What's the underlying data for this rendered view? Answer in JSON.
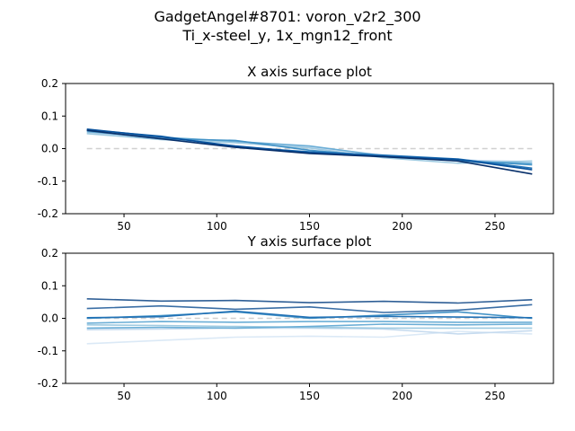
{
  "figure": {
    "suptitle_line1": "GadgetAngel#8701: voron_v2r2_300",
    "suptitle_line2": "Ti_x-steel_y, 1x_mgn12_front"
  },
  "chart_data": [
    {
      "type": "line",
      "title": "X axis surface plot",
      "xlabel": "",
      "ylabel": "",
      "xlim": [
        18.5,
        281.5
      ],
      "ylim": [
        -0.2,
        0.2
      ],
      "xticks": [
        50,
        100,
        150,
        200,
        250
      ],
      "yticks": [
        -0.2,
        -0.1,
        0.0,
        0.1,
        0.2
      ],
      "grid": false,
      "x": [
        30,
        70,
        110,
        150,
        190,
        230,
        270
      ],
      "reference": {
        "values": [
          0,
          0,
          0,
          0,
          0,
          0,
          0
        ],
        "style": "dashed",
        "color": "#d0d0d0"
      },
      "series": [
        {
          "color": "#c6dbef",
          "values": [
            0.048,
            0.032,
            0.02,
            0.005,
            -0.02,
            -0.035,
            -0.04
          ]
        },
        {
          "color": "#9ecae1",
          "values": [
            0.046,
            0.028,
            0.018,
            0.002,
            -0.028,
            -0.045,
            -0.038
          ]
        },
        {
          "color": "#6baed6",
          "values": [
            0.052,
            0.035,
            0.022,
            0.008,
            -0.022,
            -0.038,
            -0.045
          ]
        },
        {
          "color": "#4292c6",
          "values": [
            0.055,
            0.03,
            0.025,
            -0.005,
            -0.025,
            -0.036,
            -0.05
          ]
        },
        {
          "color": "#2171b5",
          "values": [
            0.058,
            0.038,
            0.005,
            -0.01,
            -0.02,
            -0.032,
            -0.06
          ]
        },
        {
          "color": "#08519c",
          "values": [
            0.06,
            0.036,
            0.008,
            -0.012,
            -0.024,
            -0.033,
            -0.065
          ]
        },
        {
          "color": "#08306b",
          "values": [
            0.056,
            0.03,
            0.004,
            -0.015,
            -0.025,
            -0.038,
            -0.078
          ]
        }
      ]
    },
    {
      "type": "line",
      "title": "Y axis surface plot",
      "xlabel": "",
      "ylabel": "",
      "xlim": [
        18.5,
        281.5
      ],
      "ylim": [
        -0.2,
        0.2
      ],
      "xticks": [
        50,
        100,
        150,
        200,
        250
      ],
      "yticks": [
        -0.2,
        -0.1,
        0.0,
        0.1,
        0.2
      ],
      "grid": false,
      "x": [
        30,
        70,
        110,
        150,
        190,
        230,
        270
      ],
      "reference": {
        "values": [
          0,
          0,
          0,
          0,
          0,
          0,
          0
        ],
        "style": "dashed",
        "color": "#d0d0d0"
      },
      "series": [
        {
          "color": "#dbe9f6",
          "values": [
            -0.078,
            -0.068,
            -0.058,
            -0.055,
            -0.058,
            -0.04,
            -0.048
          ]
        },
        {
          "color": "#c6dbef",
          "values": [
            -0.035,
            -0.033,
            -0.03,
            -0.03,
            -0.033,
            -0.048,
            -0.038
          ]
        },
        {
          "color": "#9ecae1",
          "values": [
            -0.02,
            -0.022,
            -0.025,
            -0.028,
            -0.03,
            -0.03,
            -0.03
          ]
        },
        {
          "color": "#6baed6",
          "values": [
            -0.03,
            -0.028,
            -0.03,
            -0.025,
            -0.018,
            -0.02,
            -0.018
          ]
        },
        {
          "color": "#6baed6",
          "values": [
            -0.015,
            -0.01,
            -0.012,
            -0.01,
            -0.01,
            -0.012,
            -0.012
          ]
        },
        {
          "color": "#4292c6",
          "values": [
            0.0,
            0.008,
            0.02,
            0.0,
            0.01,
            0.02,
            0.0
          ]
        },
        {
          "color": "#2171b5",
          "values": [
            0.002,
            0.005,
            0.022,
            0.003,
            0.006,
            0.004,
            0.002
          ]
        },
        {
          "color": "#3a6ea5",
          "values": [
            0.03,
            0.038,
            0.028,
            0.035,
            0.018,
            0.025,
            0.042
          ]
        },
        {
          "color": "#2f5f96",
          "values": [
            0.06,
            0.053,
            0.055,
            0.048,
            0.052,
            0.047,
            0.057
          ]
        }
      ]
    }
  ]
}
